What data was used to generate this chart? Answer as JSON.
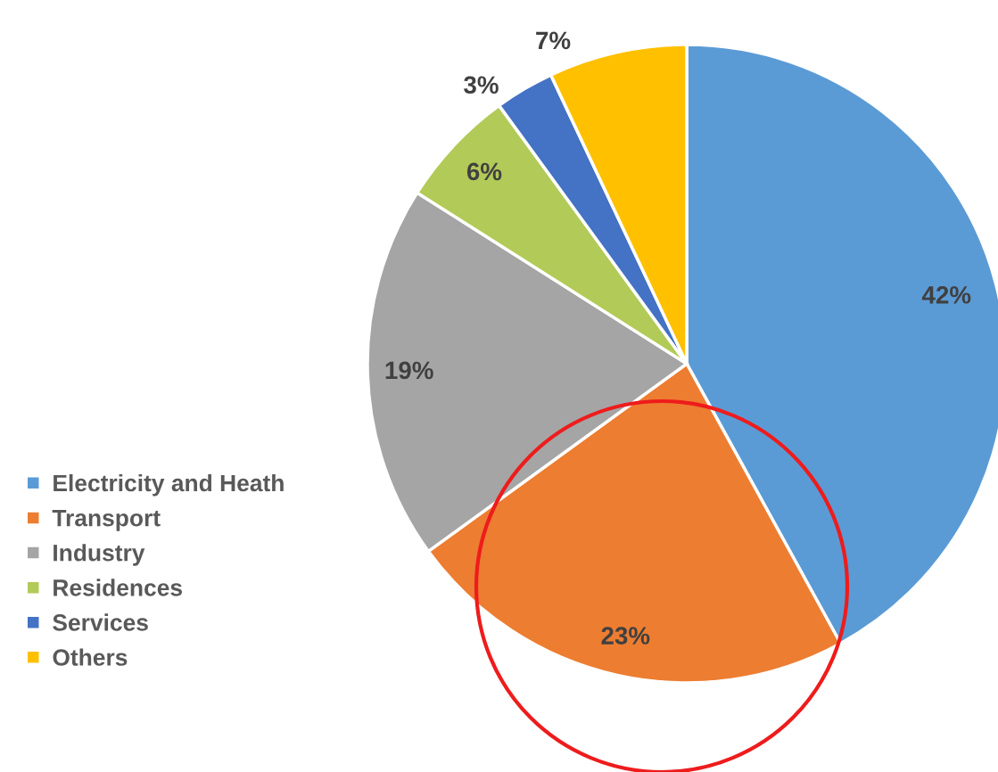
{
  "chart_data": {
    "type": "pie",
    "categories": [
      "Electricity and Heath",
      "Transport",
      "Industry",
      "Residences",
      "Services",
      "Others"
    ],
    "values": [
      42,
      23,
      19,
      6,
      3,
      7
    ],
    "value_labels": [
      "42%",
      "23%",
      "19%",
      "6%",
      "3%",
      "7%"
    ],
    "colors": [
      "#5b9bd5",
      "#ed7d31",
      "#a5a5a5",
      "#b2ca58",
      "#4472c4",
      "#ffc000"
    ],
    "legend": "left"
  }
}
